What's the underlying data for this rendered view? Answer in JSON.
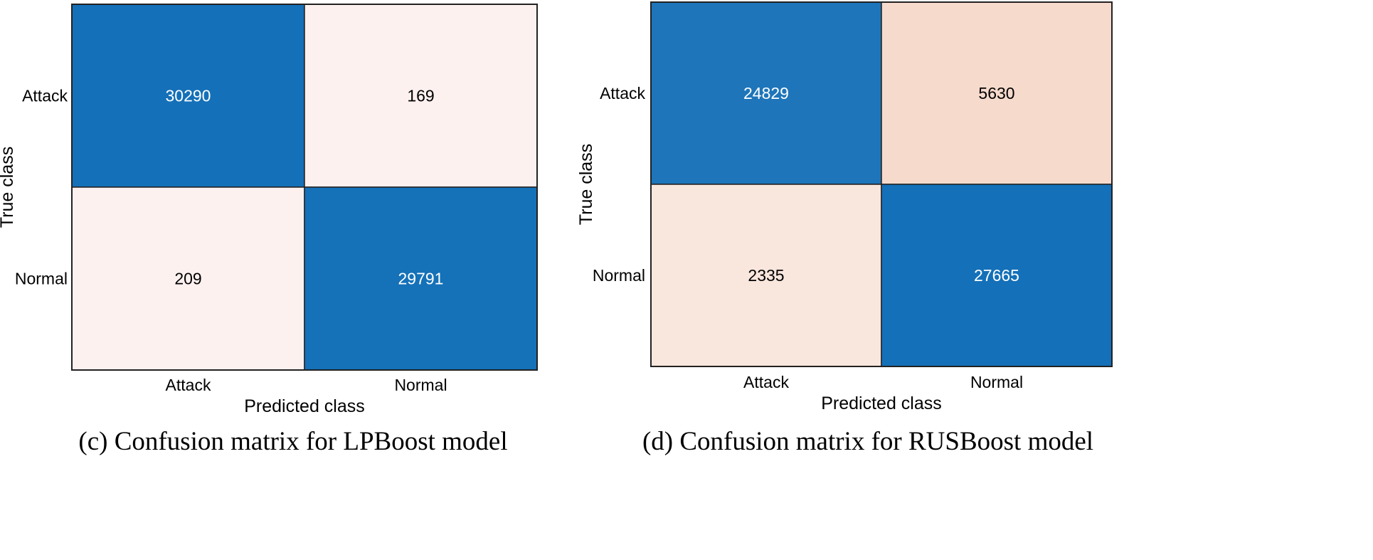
{
  "chart_data": [
    {
      "type": "heatmap",
      "caption": "(c) Confusion matrix for LPBoost model",
      "xlabel": "Predicted class",
      "ylabel": "True class",
      "x_categories": [
        "Attack",
        "Normal"
      ],
      "y_categories": [
        "Attack",
        "Normal"
      ],
      "values": [
        [
          30290,
          169
        ],
        [
          209,
          29791
        ]
      ],
      "colors": {
        "high": "#1470b8",
        "low": "#fdf1f0",
        "text_on_high": "#ffffff",
        "text_on_low": "#000000"
      }
    },
    {
      "type": "heatmap",
      "caption": "(d) Confusion matrix for RUSBoost model",
      "xlabel": "Predicted class",
      "ylabel": "True class",
      "x_categories": [
        "Attack",
        "Normal"
      ],
      "y_categories": [
        "Attack",
        "Normal"
      ],
      "values": [
        [
          24829,
          5630
        ],
        [
          2335,
          27665
        ]
      ],
      "colors": {
        "high": "#1470b8",
        "low": "#f9e6dd",
        "mid": "#f3cfbd",
        "text_on_high": "#ffffff",
        "text_on_low": "#000000"
      }
    }
  ]
}
